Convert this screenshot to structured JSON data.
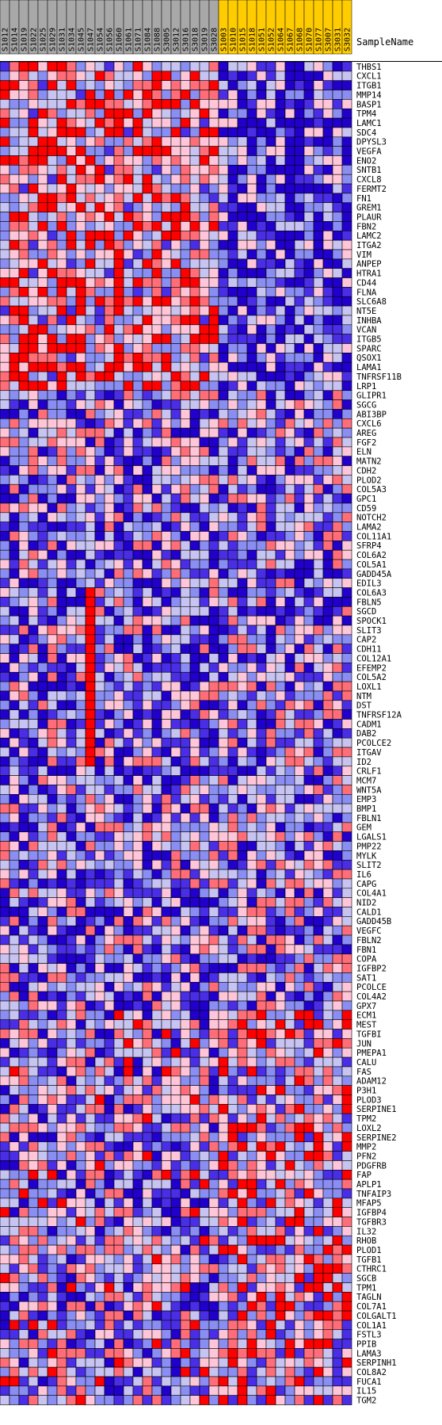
{
  "chart_data": {
    "type": "heatmap",
    "row_header": "SampleName",
    "columns": [
      {
        "label": "S1012",
        "group": "gray"
      },
      {
        "label": "S1014",
        "group": "gray"
      },
      {
        "label": "S1019",
        "group": "gray"
      },
      {
        "label": "S1022",
        "group": "gray"
      },
      {
        "label": "S1025",
        "group": "gray"
      },
      {
        "label": "S1029",
        "group": "gray"
      },
      {
        "label": "S1031",
        "group": "gray"
      },
      {
        "label": "S1034",
        "group": "gray"
      },
      {
        "label": "S1045",
        "group": "gray"
      },
      {
        "label": "S1047",
        "group": "gray"
      },
      {
        "label": "S1054",
        "group": "gray"
      },
      {
        "label": "S1056",
        "group": "gray"
      },
      {
        "label": "S1060",
        "group": "gray"
      },
      {
        "label": "S1061",
        "group": "gray"
      },
      {
        "label": "S1071",
        "group": "gray"
      },
      {
        "label": "S1084",
        "group": "gray"
      },
      {
        "label": "S1088",
        "group": "gray"
      },
      {
        "label": "S3005",
        "group": "gray"
      },
      {
        "label": "S3012",
        "group": "gray"
      },
      {
        "label": "S3016",
        "group": "gray"
      },
      {
        "label": "S3018",
        "group": "gray"
      },
      {
        "label": "S3019",
        "group": "gray"
      },
      {
        "label": "S3028",
        "group": "gray"
      },
      {
        "label": "S1003",
        "group": "gold"
      },
      {
        "label": "S1010",
        "group": "gold"
      },
      {
        "label": "S1015",
        "group": "gold"
      },
      {
        "label": "S1018",
        "group": "gold"
      },
      {
        "label": "S1051",
        "group": "gold"
      },
      {
        "label": "S1052",
        "group": "gold"
      },
      {
        "label": "S1064",
        "group": "gold"
      },
      {
        "label": "S1067",
        "group": "gold"
      },
      {
        "label": "S1068",
        "group": "gold"
      },
      {
        "label": "S1070",
        "group": "gold"
      },
      {
        "label": "S1077",
        "group": "gold"
      },
      {
        "label": "S3007",
        "group": "gold"
      },
      {
        "label": "S3031",
        "group": "gold"
      },
      {
        "label": "S3032",
        "group": "gold"
      }
    ],
    "rows": [
      "THBS1",
      "CXCL1",
      "ITGB1",
      "MMP14",
      "BASP1",
      "TPM4",
      "LAMC1",
      "SDC4",
      "DPYSL3",
      "VEGFA",
      "ENO2",
      "SNTB1",
      "CXCL8",
      "FERMT2",
      "FN1",
      "GREM1",
      "PLAUR",
      "FBN2",
      "LAMC2",
      "ITGA2",
      "VIM",
      "ANPEP",
      "HTRA1",
      "CD44",
      "FLNA",
      "SLC6A8",
      "NT5E",
      "INHBA",
      "VCAN",
      "ITGB5",
      "SPARC",
      "QSOX1",
      "LAMA1",
      "TNFRSF11B",
      "LRP1",
      "GLIPR1",
      "SGCG",
      "ABI3BP",
      "CXCL6",
      "AREG",
      "FGF2",
      "ELN",
      "MATN2",
      "CDH2",
      "PLOD2",
      "COL5A3",
      "GPC1",
      "CD59",
      "NOTCH2",
      "LAMA2",
      "COL11A1",
      "SFRP4",
      "COL6A2",
      "COL5A1",
      "GADD45A",
      "EDIL3",
      "COL6A3",
      "FBLN5",
      "SGCD",
      "SPOCK1",
      "SLIT3",
      "CAP2",
      "CDH11",
      "COL12A1",
      "EFEMP2",
      "COL5A2",
      "LOXL1",
      "NTM",
      "DST",
      "TNFRSF12A",
      "CADM1",
      "DAB2",
      "PCOLCE2",
      "ITGAV",
      "ID2",
      "CRLF1",
      "MCM7",
      "WNT5A",
      "EMP3",
      "BMP1",
      "FBLN1",
      "GEM",
      "LGALS1",
      "PMP22",
      "MYLK",
      "SLIT2",
      "IL6",
      "CAPG",
      "COL4A1",
      "NID2",
      "CALD1",
      "GADD45B",
      "VEGFC",
      "FBLN2",
      "FBN1",
      "COPA",
      "IGFBP2",
      "SAT1",
      "PCOLCE",
      "COL4A2",
      "GPX7",
      "ECM1",
      "MEST",
      "TGFBI",
      "JUN",
      "PMEPA1",
      "CALU",
      "FAS",
      "ADAM12",
      "P3H1",
      "PLOD3",
      "SERPINE1",
      "TPM2",
      "LOXL2",
      "SERPINE2",
      "MMP2",
      "PFN2",
      "PDGFRB",
      "FAP",
      "APLP1",
      "TNFAIP3",
      "MFAP5",
      "IGFBP4",
      "TGFBR3",
      "IL32",
      "RHOB",
      "PLOD1",
      "TGFB1",
      "CTHRC1",
      "SGCB",
      "TPM1",
      "TAGLN",
      "COL7A1",
      "COLGALT1",
      "COL1A1",
      "FSTL3",
      "PPIB",
      "LAMA3",
      "SERPINH1",
      "COL8A2",
      "FUCA1",
      "IL15",
      "TGM2"
    ],
    "color_scale": {
      "levels": 7,
      "colors": [
        "#2200cc",
        "#4a2ee6",
        "#8a8ef2",
        "#c7c4f2",
        "#ffc6d9",
        "#ff6e78",
        "#ff0000"
      ],
      "low_label": "",
      "high_label": ""
    },
    "column_header_colors": {
      "gray": "#a8a8a8",
      "gold": "#ffcc00"
    },
    "seed_note": ""
  }
}
